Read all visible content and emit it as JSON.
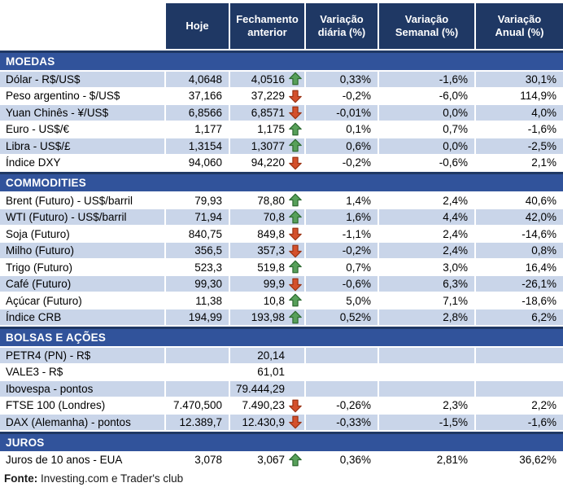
{
  "header": {
    "cols": [
      "Hoje",
      "Fechamento anterior",
      "Variação diária (%)",
      "Variação Semanal (%)",
      "Variação Anual (%)"
    ]
  },
  "sections": [
    {
      "id": "moedas",
      "name": "MOEDAS",
      "rows": [
        {
          "label": "Dólar - R$/US$",
          "hoje": "4,0648",
          "fechamento": "4,0516",
          "arrow": "up",
          "var_diaria": "0,33%",
          "var_semanal": "-1,6%",
          "var_anual": "30,1%",
          "shaded": true
        },
        {
          "label": "Peso argentino - $/US$",
          "hoje": "37,166",
          "fechamento": "37,229",
          "arrow": "down",
          "var_diaria": "-0,2%",
          "var_semanal": "-6,0%",
          "var_anual": "114,9%",
          "shaded": false
        },
        {
          "label": "Yuan Chinês - ¥/US$",
          "hoje": "6,8566",
          "fechamento": "6,8571",
          "arrow": "down",
          "var_diaria": "-0,01%",
          "var_semanal": "0,0%",
          "var_anual": "4,0%",
          "shaded": true
        },
        {
          "label": "Euro - US$/€",
          "hoje": "1,177",
          "fechamento": "1,175",
          "arrow": "up",
          "var_diaria": "0,1%",
          "var_semanal": "0,7%",
          "var_anual": "-1,6%",
          "shaded": false
        },
        {
          "label": "Libra - US$/£",
          "hoje": "1,3154",
          "fechamento": "1,3077",
          "arrow": "up",
          "var_diaria": "0,6%",
          "var_semanal": "0,0%",
          "var_anual": "-2,5%",
          "shaded": true
        },
        {
          "label": "Índice DXY",
          "hoje": "94,060",
          "fechamento": "94,220",
          "arrow": "down",
          "var_diaria": "-0,2%",
          "var_semanal": "-0,6%",
          "var_anual": "2,1%",
          "shaded": false
        }
      ]
    },
    {
      "id": "commodities",
      "name": "COMMODITIES",
      "rows": [
        {
          "label": "Brent (Futuro) - US$/barril",
          "hoje": "79,93",
          "fechamento": "78,80",
          "arrow": "up",
          "var_diaria": "1,4%",
          "var_semanal": "2,4%",
          "var_anual": "40,6%",
          "shaded": false
        },
        {
          "label": "WTI (Futuro) - US$/barril",
          "hoje": "71,94",
          "fechamento": "70,8",
          "arrow": "up",
          "var_diaria": "1,6%",
          "var_semanal": "4,4%",
          "var_anual": "42,0%",
          "shaded": true
        },
        {
          "label": "Soja (Futuro)",
          "hoje": "840,75",
          "fechamento": "849,8",
          "arrow": "down",
          "var_diaria": "-1,1%",
          "var_semanal": "2,4%",
          "var_anual": "-14,6%",
          "shaded": false
        },
        {
          "label": "Milho (Futuro)",
          "hoje": "356,5",
          "fechamento": "357,3",
          "arrow": "down",
          "var_diaria": "-0,2%",
          "var_semanal": "2,4%",
          "var_anual": "0,8%",
          "shaded": true
        },
        {
          "label": "Trigo (Futuro)",
          "hoje": "523,3",
          "fechamento": "519,8",
          "arrow": "up",
          "var_diaria": "0,7%",
          "var_semanal": "3,0%",
          "var_anual": "16,4%",
          "shaded": false
        },
        {
          "label": "Café (Futuro)",
          "hoje": "99,30",
          "fechamento": "99,9",
          "arrow": "down",
          "var_diaria": "-0,6%",
          "var_semanal": "6,3%",
          "var_anual": "-26,1%",
          "shaded": true
        },
        {
          "label": "Açúcar (Futuro)",
          "hoje": "11,38",
          "fechamento": "10,8",
          "arrow": "up",
          "var_diaria": "5,0%",
          "var_semanal": "7,1%",
          "var_anual": "-18,6%",
          "shaded": false
        },
        {
          "label": "Índice CRB",
          "hoje": "194,99",
          "fechamento": "193,98",
          "arrow": "up",
          "var_diaria": "0,52%",
          "var_semanal": "2,8%",
          "var_anual": "6,2%",
          "shaded": true
        }
      ]
    },
    {
      "id": "bolsas",
      "name": "BOLSAS E AÇÕES",
      "rows": [
        {
          "label": "PETR4 (PN) - R$",
          "hoje": "",
          "fechamento": "20,14",
          "arrow": "none",
          "var_diaria": "",
          "var_semanal": "",
          "var_anual": "",
          "shaded": true
        },
        {
          "label": "VALE3 - R$",
          "hoje": "",
          "fechamento": "61,01",
          "arrow": "none",
          "var_diaria": "",
          "var_semanal": "",
          "var_anual": "",
          "shaded": false
        },
        {
          "label": "Ibovespa - pontos",
          "hoje": "",
          "fechamento": "79.444,29",
          "arrow": "none",
          "var_diaria": "",
          "var_semanal": "",
          "var_anual": "",
          "shaded": true
        },
        {
          "label": "FTSE 100 (Londres)",
          "hoje": "7.470,500",
          "fechamento": "7.490,23",
          "arrow": "down",
          "var_diaria": "-0,26%",
          "var_semanal": "2,3%",
          "var_anual": "2,2%",
          "shaded": false
        },
        {
          "label": "DAX (Alemanha) - pontos",
          "hoje": "12.389,7",
          "fechamento": "12.430,9",
          "arrow": "down",
          "var_diaria": "-0,33%",
          "var_semanal": "-1,5%",
          "var_anual": "-1,6%",
          "shaded": true
        }
      ]
    },
    {
      "id": "juros",
      "name": "JUROS",
      "rows": [
        {
          "label": "Juros de 10 anos - EUA",
          "hoje": "3,078",
          "fechamento": "3,067",
          "arrow": "up",
          "var_diaria": "0,36%",
          "var_semanal": "2,81%",
          "var_anual": "36,62%",
          "shaded": false
        }
      ]
    }
  ],
  "footer": {
    "fonte_label": "Fonte:",
    "fonte_text": " Investing.com e Trader's club"
  },
  "colors": {
    "header_bg": "#1F3864",
    "section_bg": "#31539B",
    "row_shaded": "#C9D5E9",
    "arrow_up_fill": "#57A05A",
    "arrow_up_border": "#2F6B32",
    "arrow_down_fill": "#D4502C",
    "arrow_down_border": "#9C3415"
  }
}
